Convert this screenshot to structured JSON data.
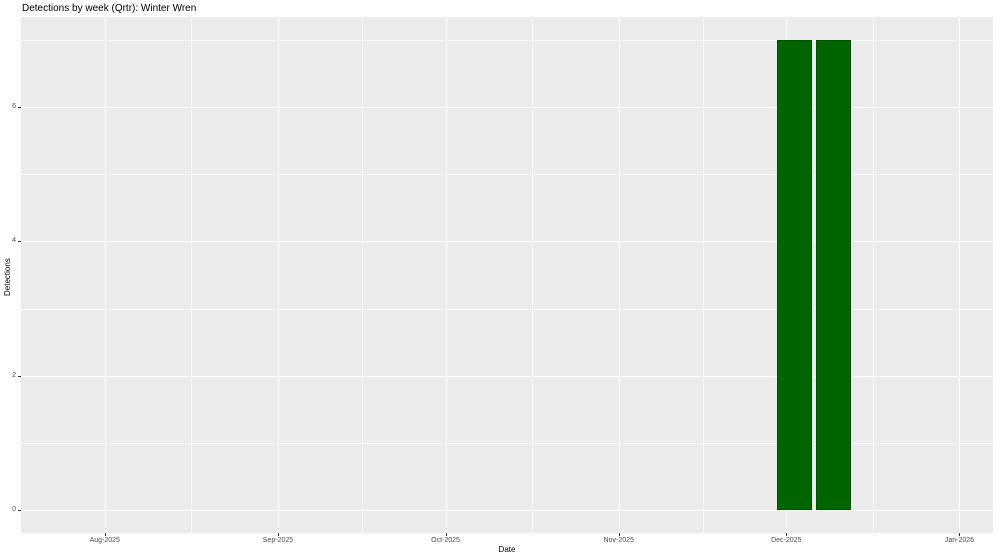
{
  "chart_data": {
    "type": "bar",
    "title": "Detections by week (Qrtr): Winter Wren",
    "xlabel": "Date",
    "ylabel": "Detections",
    "categories": [
      "2025-11-29",
      "2025-12-06"
    ],
    "values": [
      7,
      7
    ],
    "bar_width_days": 6.3,
    "bar_fill": "#006400",
    "panel_bg": "#ebebeb",
    "grid_major_color": "#ffffff",
    "grid_minor_color": "rgba(255,255,255,0.65)",
    "tick_color": "#333333",
    "x_domain": [
      "2025-07-17",
      "2026-01-07"
    ],
    "y_domain": [
      -0.35,
      7.35
    ],
    "ylim": [
      0,
      7
    ],
    "x_ticks": [
      {
        "date": "2025-08-01",
        "label": "Aug-2025"
      },
      {
        "date": "2025-09-01",
        "label": "Sep-2025"
      },
      {
        "date": "2025-10-01",
        "label": "Oct-2025"
      },
      {
        "date": "2025-11-01",
        "label": "Nov-2025"
      },
      {
        "date": "2025-12-01",
        "label": "Dec-2025"
      },
      {
        "date": "2026-01-01",
        "label": "Jan-2026"
      }
    ],
    "y_ticks": [
      {
        "value": 0,
        "label": "0"
      },
      {
        "value": 2,
        "label": "2"
      },
      {
        "value": 4,
        "label": "4"
      },
      {
        "value": 6,
        "label": "6"
      }
    ],
    "y_minor": [
      1,
      3,
      5,
      7
    ],
    "grid": "on",
    "legend": "none"
  }
}
